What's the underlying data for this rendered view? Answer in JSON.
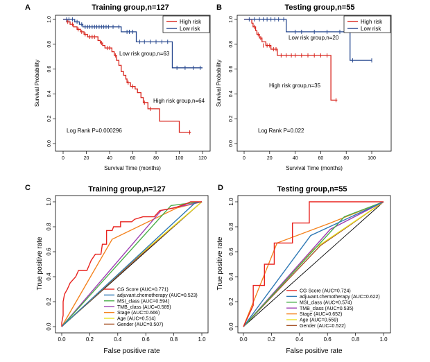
{
  "chart_data": [
    {
      "panel": "A",
      "type": "line",
      "subtype": "kaplan-meier",
      "title": "Training group,n=127",
      "xlabel": "Survival Time (months)",
      "ylabel": "Survival Probability",
      "xlim": [
        0,
        120
      ],
      "ylim": [
        0,
        1
      ],
      "xticks": [
        0,
        20,
        40,
        60,
        80,
        100,
        120
      ],
      "yticks": [
        0.0,
        0.2,
        0.4,
        0.6,
        0.8,
        1.0
      ],
      "legend": {
        "position": "top-right",
        "entries": [
          "High risk",
          "Low risk"
        ]
      },
      "annotations": [
        "Low risk group,n=63",
        "High risk group,n=64",
        "Log Rank P=0.000296"
      ],
      "series": [
        {
          "name": "High risk",
          "color": "#d8241c",
          "steps": [
            [
              0,
              1.0
            ],
            [
              3,
              0.98
            ],
            [
              6,
              0.96
            ],
            [
              9,
              0.94
            ],
            [
              12,
              0.92
            ],
            [
              15,
              0.9
            ],
            [
              18,
              0.88
            ],
            [
              21,
              0.86
            ],
            [
              30,
              0.83
            ],
            [
              32,
              0.81
            ],
            [
              34,
              0.79
            ],
            [
              36,
              0.77
            ],
            [
              42,
              0.74
            ],
            [
              44,
              0.71
            ],
            [
              46,
              0.67
            ],
            [
              48,
              0.63
            ],
            [
              50,
              0.58
            ],
            [
              52,
              0.55
            ],
            [
              54,
              0.52
            ],
            [
              55,
              0.49
            ],
            [
              58,
              0.46
            ],
            [
              62,
              0.44
            ],
            [
              64,
              0.41
            ],
            [
              67,
              0.37
            ],
            [
              69,
              0.33
            ],
            [
              73,
              0.28
            ],
            [
              83,
              0.18
            ],
            [
              100,
              0.09
            ],
            [
              110,
              0.09
            ]
          ],
          "censor": [
            [
              4,
              0.98
            ],
            [
              8,
              0.96
            ],
            [
              13,
              0.92
            ],
            [
              16,
              0.9
            ],
            [
              19,
              0.88
            ],
            [
              23,
              0.86
            ],
            [
              25,
              0.86
            ],
            [
              27,
              0.86
            ],
            [
              33,
              0.81
            ],
            [
              38,
              0.77
            ],
            [
              40,
              0.77
            ],
            [
              45,
              0.71
            ],
            [
              56,
              0.49
            ],
            [
              60,
              0.46
            ],
            [
              70,
              0.33
            ],
            [
              75,
              0.28
            ],
            [
              109,
              0.09
            ]
          ]
        },
        {
          "name": "Low risk",
          "color": "#27488f",
          "steps": [
            [
              0,
              1.0
            ],
            [
              10,
              0.98
            ],
            [
              14,
              0.96
            ],
            [
              17,
              0.94
            ],
            [
              50,
              0.9
            ],
            [
              63,
              0.82
            ],
            [
              94,
              0.61
            ],
            [
              120,
              0.61
            ]
          ],
          "censor": [
            [
              3,
              1.0
            ],
            [
              5,
              1.0
            ],
            [
              8,
              1.0
            ],
            [
              12,
              0.98
            ],
            [
              16,
              0.96
            ],
            [
              19,
              0.94
            ],
            [
              21,
              0.94
            ],
            [
              23,
              0.94
            ],
            [
              25,
              0.94
            ],
            [
              27,
              0.94
            ],
            [
              29,
              0.94
            ],
            [
              31,
              0.94
            ],
            [
              33,
              0.94
            ],
            [
              35,
              0.94
            ],
            [
              37,
              0.94
            ],
            [
              39,
              0.94
            ],
            [
              43,
              0.94
            ],
            [
              48,
              0.94
            ],
            [
              55,
              0.9
            ],
            [
              57,
              0.9
            ],
            [
              60,
              0.9
            ],
            [
              66,
              0.82
            ],
            [
              70,
              0.82
            ],
            [
              75,
              0.82
            ],
            [
              80,
              0.82
            ],
            [
              85,
              0.82
            ],
            [
              90,
              0.82
            ],
            [
              98,
              0.61
            ],
            [
              105,
              0.61
            ],
            [
              112,
              0.61
            ],
            [
              118,
              0.61
            ]
          ]
        }
      ]
    },
    {
      "panel": "B",
      "type": "line",
      "subtype": "kaplan-meier",
      "title": "Testing group,n=55",
      "xlabel": "Survival Time (months)",
      "ylabel": "Survival Probability",
      "xlim": [
        0,
        100
      ],
      "ylim": [
        0,
        1
      ],
      "xticks": [
        0,
        20,
        40,
        60,
        80,
        100
      ],
      "yticks": [
        0.0,
        0.2,
        0.4,
        0.6,
        0.8,
        1.0
      ],
      "legend": {
        "position": "top-right",
        "entries": [
          "High risk",
          "Low risk"
        ]
      },
      "annotations": [
        "Low risk group,n=20",
        "High risk group,n=35",
        "Log Rank P=0.022"
      ],
      "series": [
        {
          "name": "High risk",
          "color": "#d8241c",
          "steps": [
            [
              0,
              1.0
            ],
            [
              6,
              0.97
            ],
            [
              7,
              0.94
            ],
            [
              9,
              0.91
            ],
            [
              10,
              0.88
            ],
            [
              12,
              0.85
            ],
            [
              14,
              0.82
            ],
            [
              17,
              0.79
            ],
            [
              21,
              0.76
            ],
            [
              26,
              0.71
            ],
            [
              68,
              0.35
            ],
            [
              73,
              0.35
            ]
          ],
          "censor": [
            [
              8,
              0.94
            ],
            [
              11,
              0.88
            ],
            [
              13,
              0.85
            ],
            [
              15,
              0.79
            ],
            [
              18,
              0.79
            ],
            [
              20,
              0.79
            ],
            [
              23,
              0.76
            ],
            [
              25,
              0.76
            ],
            [
              29,
              0.71
            ],
            [
              33,
              0.71
            ],
            [
              37,
              0.71
            ],
            [
              40,
              0.71
            ],
            [
              45,
              0.71
            ],
            [
              50,
              0.71
            ],
            [
              55,
              0.71
            ],
            [
              60,
              0.71
            ],
            [
              65,
              0.71
            ],
            [
              72,
              0.35
            ]
          ]
        },
        {
          "name": "Low risk",
          "color": "#27488f",
          "steps": [
            [
              0,
              1.0
            ],
            [
              33,
              0.9
            ],
            [
              83,
              0.67
            ],
            [
              100,
              0.67
            ]
          ],
          "censor": [
            [
              4,
              1.0
            ],
            [
              8,
              1.0
            ],
            [
              12,
              1.0
            ],
            [
              15,
              1.0
            ],
            [
              18,
              1.0
            ],
            [
              21,
              1.0
            ],
            [
              24,
              1.0
            ],
            [
              27,
              1.0
            ],
            [
              31,
              1.0
            ],
            [
              40,
              0.9
            ],
            [
              45,
              0.9
            ],
            [
              55,
              0.9
            ],
            [
              65,
              0.9
            ],
            [
              75,
              0.9
            ],
            [
              85,
              0.67
            ],
            [
              100,
              0.67
            ]
          ]
        }
      ]
    },
    {
      "panel": "C",
      "type": "line",
      "subtype": "roc",
      "title": "Training group,n=127",
      "xlabel": "False positive rate",
      "ylabel": "True positive rate",
      "xlim": [
        0,
        1
      ],
      "ylim": [
        0,
        1
      ],
      "xticks": [
        0.0,
        0.2,
        0.4,
        0.6,
        0.8,
        1.0
      ],
      "yticks": [
        0.0,
        0.2,
        0.4,
        0.6,
        0.8,
        1.0
      ],
      "legend": {
        "position": "bottom-right"
      },
      "series": [
        {
          "name": "CG Score",
          "label": "CG Score (AUC=0.771)",
          "color": "#e8231f",
          "points": [
            [
              0,
              0
            ],
            [
              0,
              0.03
            ],
            [
              0.01,
              0.09
            ],
            [
              0.01,
              0.2
            ],
            [
              0.02,
              0.26
            ],
            [
              0.04,
              0.3
            ],
            [
              0.06,
              0.35
            ],
            [
              0.1,
              0.4
            ],
            [
              0.12,
              0.45
            ],
            [
              0.18,
              0.45
            ],
            [
              0.21,
              0.53
            ],
            [
              0.24,
              0.58
            ],
            [
              0.28,
              0.58
            ],
            [
              0.29,
              0.66
            ],
            [
              0.32,
              0.66
            ],
            [
              0.32,
              0.77
            ],
            [
              0.36,
              0.77
            ],
            [
              0.37,
              0.8
            ],
            [
              0.42,
              0.8
            ],
            [
              0.42,
              0.84
            ],
            [
              0.5,
              0.84
            ],
            [
              0.52,
              0.86
            ],
            [
              0.58,
              0.88
            ],
            [
              0.66,
              0.88
            ],
            [
              0.7,
              0.93
            ],
            [
              0.8,
              0.95
            ],
            [
              0.88,
              0.98
            ],
            [
              0.92,
              1.0
            ],
            [
              1,
              1
            ]
          ]
        },
        {
          "name": "adjuvant.chemotherapy",
          "label": "adjuvant.chemotherapy (AUC=0.523)",
          "color": "#2f79b5",
          "points": [
            [
              0,
              0
            ],
            [
              0.95,
              0.99
            ],
            [
              1,
              1
            ]
          ]
        },
        {
          "name": "MSI_class",
          "label": "MSI_class (AUC=0.594)",
          "color": "#4aae4a",
          "points": [
            [
              0,
              0
            ],
            [
              0.78,
              0.97
            ],
            [
              0.85,
              0.98
            ],
            [
              1,
              1
            ]
          ]
        },
        {
          "name": "TMB_class",
          "label": "TMB_class (AUC=0.589)",
          "color": "#9e3eb2",
          "points": [
            [
              0,
              0
            ],
            [
              0.71,
              0.93
            ],
            [
              1,
              1
            ]
          ]
        },
        {
          "name": "Stage",
          "label": "Stage (AUC=0.666)",
          "color": "#f4831f",
          "points": [
            [
              0,
              0
            ],
            [
              0.36,
              0.7
            ],
            [
              0.82,
              0.95
            ],
            [
              1,
              1
            ]
          ]
        },
        {
          "name": "Age",
          "label": "Age (AUC=0.514)",
          "color": "#e8e027",
          "points": [
            [
              0,
              0
            ],
            [
              0.5,
              0.52
            ],
            [
              1,
              1
            ]
          ]
        },
        {
          "name": "Gender",
          "label": "Gender (AUC=0.507)",
          "color": "#a8562b",
          "points": [
            [
              0,
              0
            ],
            [
              0.49,
              0.5
            ],
            [
              1,
              1
            ]
          ]
        }
      ]
    },
    {
      "panel": "D",
      "type": "line",
      "subtype": "roc",
      "title": "Testing group,n=55",
      "xlabel": "False positive rate",
      "ylabel": "True positive rate",
      "xlim": [
        0,
        1
      ],
      "ylim": [
        0,
        1
      ],
      "xticks": [
        0.0,
        0.2,
        0.4,
        0.6,
        0.8,
        1.0
      ],
      "yticks": [
        0.0,
        0.2,
        0.4,
        0.6,
        0.8,
        1.0
      ],
      "legend": {
        "position": "bottom-right"
      },
      "series": [
        {
          "name": "CG Score",
          "label": "CG Score (AUC=0.724)",
          "color": "#e8231f",
          "points": [
            [
              0,
              0
            ],
            [
              0.07,
              0.17
            ],
            [
              0.07,
              0.33
            ],
            [
              0.15,
              0.33
            ],
            [
              0.15,
              0.5
            ],
            [
              0.22,
              0.5
            ],
            [
              0.22,
              0.67
            ],
            [
              0.35,
              0.67
            ],
            [
              0.35,
              0.83
            ],
            [
              0.47,
              0.83
            ],
            [
              0.47,
              1.0
            ],
            [
              1,
              1
            ]
          ]
        },
        {
          "name": "adjuvant.chemotherapy",
          "label": "adjuvant.chemotherapy (AUC=0.622)",
          "color": "#2f79b5",
          "points": [
            [
              0,
              0
            ],
            [
              0.48,
              0.73
            ],
            [
              1,
              1
            ]
          ]
        },
        {
          "name": "MSI_class",
          "label": "MSI_class (AUC=0.574)",
          "color": "#4aae4a",
          "points": [
            [
              0,
              0
            ],
            [
              0.72,
              0.88
            ],
            [
              1,
              1
            ]
          ]
        },
        {
          "name": "TMB_class",
          "label": "TMB_class (AUC=0.535)",
          "color": "#9e3eb2",
          "points": [
            [
              0,
              0
            ],
            [
              0.62,
              0.78
            ],
            [
              1,
              1
            ]
          ]
        },
        {
          "name": "Stage",
          "label": "Stage (AUC=0.652)",
          "color": "#f4831f",
          "points": [
            [
              0,
              0
            ],
            [
              0.24,
              0.67
            ],
            [
              0.62,
              0.83
            ],
            [
              1,
              1
            ]
          ]
        },
        {
          "name": "Age",
          "label": "Age (AUC=0.559)",
          "color": "#e8e027",
          "points": [
            [
              0,
              0
            ],
            [
              0.5,
              0.62
            ],
            [
              1,
              1
            ]
          ]
        },
        {
          "name": "Gender",
          "label": "Gender (AUC=0.522)",
          "color": "#a8562b",
          "points": [
            [
              0,
              0
            ],
            [
              0.55,
              0.65
            ],
            [
              1,
              1
            ]
          ]
        }
      ]
    }
  ]
}
